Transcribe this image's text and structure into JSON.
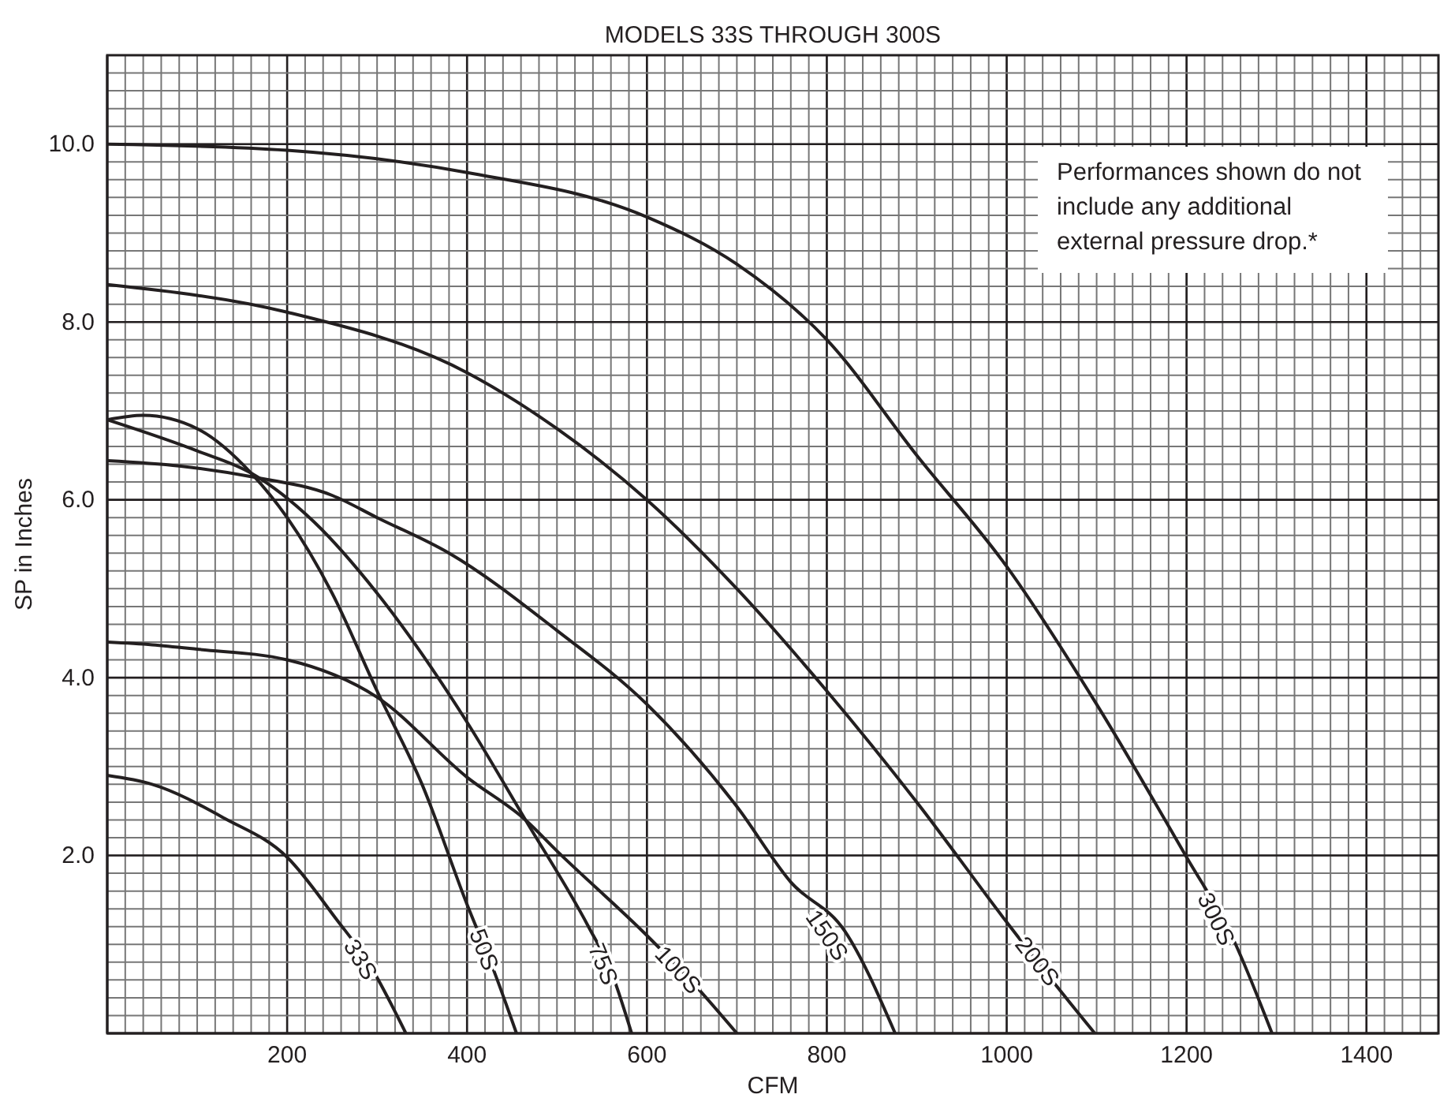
{
  "chart_data": {
    "type": "line",
    "title": "MODELS 33S THROUGH 300S",
    "xlabel": "CFM",
    "ylabel": "SP in Inches",
    "annotations": [
      "Performances shown do not include any additional external pressure drop.*"
    ],
    "xlim": [
      0,
      1480
    ],
    "ylim": [
      0,
      11
    ],
    "xticks": [
      200,
      400,
      600,
      800,
      1000,
      1200,
      1400
    ],
    "yticks": [
      {
        "value": 2,
        "label": "2.0"
      },
      {
        "value": 4,
        "label": "4.0"
      },
      {
        "value": 6,
        "label": "6.0"
      },
      {
        "value": 8,
        "label": "8.0"
      },
      {
        "value": 10,
        "label": "10.0"
      }
    ],
    "grid": true,
    "legend": false,
    "marker": "none",
    "line_style": "solid",
    "series": [
      {
        "name": "33S",
        "color": "#231f20",
        "x": [
          0,
          50,
          130,
          200,
          255,
          290,
          332
        ],
        "values": [
          2.9,
          2.8,
          2.42,
          1.98,
          1.28,
          0.8,
          0
        ]
      },
      {
        "name": "50S",
        "color": "#231f20",
        "x": [
          0,
          40,
          100,
          160,
          200,
          250,
          300,
          350,
          400,
          430,
          455
        ],
        "values": [
          6.9,
          6.95,
          6.8,
          6.3,
          5.8,
          4.95,
          3.85,
          2.8,
          1.45,
          0.7,
          0
        ]
      },
      {
        "name": "75S",
        "color": "#231f20",
        "x": [
          0,
          100,
          160,
          230,
          300,
          400,
          465,
          535,
          560,
          583
        ],
        "values": [
          6.9,
          6.55,
          6.3,
          5.75,
          4.95,
          3.5,
          2.4,
          1.2,
          0.7,
          0
        ]
      },
      {
        "name": "100S",
        "color": "#231f20",
        "x": [
          0,
          50,
          100,
          200,
          300,
          400,
          465,
          500,
          600,
          650,
          700
        ],
        "values": [
          4.4,
          4.37,
          4.32,
          4.2,
          3.78,
          2.88,
          2.4,
          2.05,
          1.1,
          0.58,
          0
        ]
      },
      {
        "name": "150S",
        "color": "#231f20",
        "x": [
          0,
          80,
          160,
          250,
          300,
          380,
          500,
          600,
          700,
          760,
          820,
          876
        ],
        "values": [
          6.44,
          6.38,
          6.26,
          6.05,
          5.8,
          5.4,
          4.53,
          3.7,
          2.55,
          1.7,
          1.15,
          0
        ]
      },
      {
        "name": "200S",
        "color": "#231f20",
        "x": [
          0,
          200,
          400,
          500,
          600,
          700,
          800,
          900,
          1000,
          1050,
          1098
        ],
        "values": [
          8.42,
          8.11,
          7.43,
          6.8,
          6.0,
          5.0,
          3.85,
          2.6,
          1.25,
          0.6,
          0
        ]
      },
      {
        "name": "300S",
        "color": "#231f20",
        "x": [
          0,
          200,
          400,
          600,
          700,
          800,
          900,
          1000,
          1100,
          1200,
          1250,
          1295
        ],
        "values": [
          10,
          9.93,
          9.68,
          9.18,
          8.65,
          7.8,
          6.5,
          5.25,
          3.7,
          1.98,
          1.1,
          0
        ]
      }
    ]
  }
}
